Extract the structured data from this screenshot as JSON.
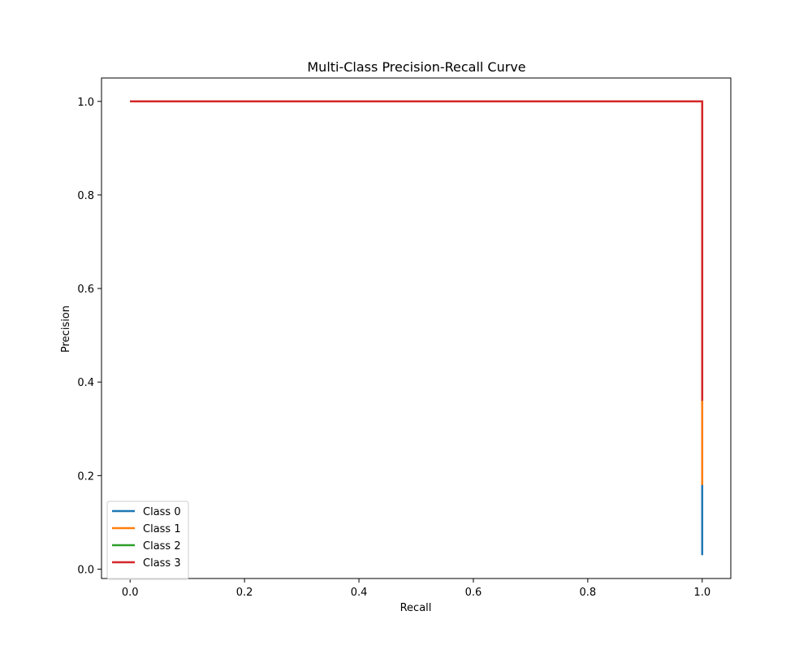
{
  "chart_data": {
    "type": "line",
    "title": "Multi-Class Precision-Recall Curve",
    "xlabel": "Recall",
    "ylabel": "Precision",
    "xlim": [
      -0.05,
      1.05
    ],
    "ylim": [
      -0.02,
      1.05
    ],
    "xticks": [
      "0.0",
      "0.2",
      "0.4",
      "0.6",
      "0.8",
      "1.0"
    ],
    "yticks": [
      "0.0",
      "0.2",
      "0.4",
      "0.6",
      "0.8",
      "1.0"
    ],
    "grid": false,
    "legend_position": "lower-left",
    "series": [
      {
        "name": "Class 0",
        "color": "#1f77b4",
        "x": [
          0.0,
          1.0,
          1.0
        ],
        "y": [
          1.0,
          1.0,
          0.03
        ]
      },
      {
        "name": "Class 1",
        "color": "#ff7f0e",
        "x": [
          0.0,
          1.0,
          1.0
        ],
        "y": [
          1.0,
          1.0,
          0.18
        ]
      },
      {
        "name": "Class 2",
        "color": "#2ca02c",
        "x": [
          0.0,
          1.0,
          1.0
        ],
        "y": [
          1.0,
          1.0,
          0.36
        ]
      },
      {
        "name": "Class 3",
        "color": "#d62728",
        "x": [
          0.0,
          1.0,
          1.0
        ],
        "y": [
          1.0,
          1.0,
          0.36
        ]
      }
    ]
  }
}
